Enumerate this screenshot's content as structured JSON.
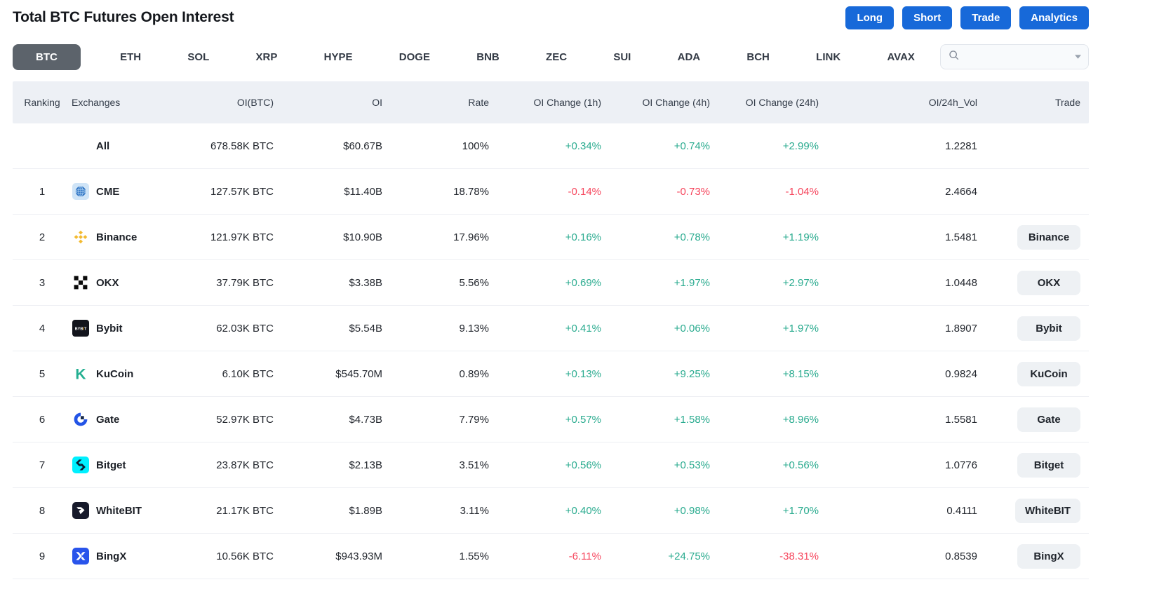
{
  "page": {
    "title": "Total BTC Futures Open Interest",
    "actions": [
      {
        "label": "Long"
      },
      {
        "label": "Short"
      },
      {
        "label": "Trade"
      },
      {
        "label": "Analytics"
      }
    ]
  },
  "tabs": {
    "items": [
      "BTC",
      "ETH",
      "SOL",
      "XRP",
      "HYPE",
      "DOGE",
      "BNB",
      "ZEC",
      "SUI",
      "ADA",
      "BCH",
      "LINK",
      "AVAX"
    ],
    "selected": "BTC"
  },
  "search": {
    "value": "",
    "placeholder": "",
    "icons": [
      "search-icon",
      "chevron-down-icon"
    ]
  },
  "table": {
    "columns": [
      "Ranking",
      "Exchanges",
      "OI(BTC)",
      "OI",
      "Rate",
      "OI Change (1h)",
      "OI Change (4h)",
      "OI Change (24h)",
      "OI/24h_Vol",
      "Trade"
    ],
    "rows": [
      {
        "rank": "",
        "name": "All",
        "logo": "",
        "oi_btc": "678.58K BTC",
        "oi": "$60.67B",
        "rate": "100%",
        "chg_1h": "+0.34%",
        "chg_4h": "+0.74%",
        "chg_24h": "+2.99%",
        "oi_24h_vol": "1.2281",
        "trade": ""
      },
      {
        "rank": "1",
        "name": "CME",
        "logo": "cme-logo",
        "oi_btc": "127.57K BTC",
        "oi": "$11.40B",
        "rate": "18.78%",
        "chg_1h": "-0.14%",
        "chg_4h": "-0.73%",
        "chg_24h": "-1.04%",
        "oi_24h_vol": "2.4664",
        "trade": ""
      },
      {
        "rank": "2",
        "name": "Binance",
        "logo": "binance-logo",
        "oi_btc": "121.97K BTC",
        "oi": "$10.90B",
        "rate": "17.96%",
        "chg_1h": "+0.16%",
        "chg_4h": "+0.78%",
        "chg_24h": "+1.19%",
        "oi_24h_vol": "1.5481",
        "trade": "Binance"
      },
      {
        "rank": "3",
        "name": "OKX",
        "logo": "okx-logo",
        "oi_btc": "37.79K BTC",
        "oi": "$3.38B",
        "rate": "5.56%",
        "chg_1h": "+0.69%",
        "chg_4h": "+1.97%",
        "chg_24h": "+2.97%",
        "oi_24h_vol": "1.0448",
        "trade": "OKX"
      },
      {
        "rank": "4",
        "name": "Bybit",
        "logo": "bybit-logo",
        "oi_btc": "62.03K BTC",
        "oi": "$5.54B",
        "rate": "9.13%",
        "chg_1h": "+0.41%",
        "chg_4h": "+0.06%",
        "chg_24h": "+1.97%",
        "oi_24h_vol": "1.8907",
        "trade": "Bybit"
      },
      {
        "rank": "5",
        "name": "KuCoin",
        "logo": "kucoin-logo",
        "oi_btc": "6.10K BTC",
        "oi": "$545.70M",
        "rate": "0.89%",
        "chg_1h": "+0.13%",
        "chg_4h": "+9.25%",
        "chg_24h": "+8.15%",
        "oi_24h_vol": "0.9824",
        "trade": "KuCoin"
      },
      {
        "rank": "6",
        "name": "Gate",
        "logo": "gate-logo",
        "oi_btc": "52.97K BTC",
        "oi": "$4.73B",
        "rate": "7.79%",
        "chg_1h": "+0.57%",
        "chg_4h": "+1.58%",
        "chg_24h": "+8.96%",
        "oi_24h_vol": "1.5581",
        "trade": "Gate"
      },
      {
        "rank": "7",
        "name": "Bitget",
        "logo": "bitget-logo",
        "oi_btc": "23.87K BTC",
        "oi": "$2.13B",
        "rate": "3.51%",
        "chg_1h": "+0.56%",
        "chg_4h": "+0.53%",
        "chg_24h": "+0.56%",
        "oi_24h_vol": "1.0776",
        "trade": "Bitget"
      },
      {
        "rank": "8",
        "name": "WhiteBIT",
        "logo": "whitebit-logo",
        "oi_btc": "21.17K BTC",
        "oi": "$1.89B",
        "rate": "3.11%",
        "chg_1h": "+0.40%",
        "chg_4h": "+0.98%",
        "chg_24h": "+1.70%",
        "oi_24h_vol": "0.4111",
        "trade": "WhiteBIT"
      },
      {
        "rank": "9",
        "name": "BingX",
        "logo": "bingx-logo",
        "oi_btc": "10.56K BTC",
        "oi": "$943.93M",
        "rate": "1.55%",
        "chg_1h": "-6.11%",
        "chg_4h": "+24.75%",
        "chg_24h": "-38.31%",
        "oi_24h_vol": "0.8539",
        "trade": "BingX"
      }
    ]
  },
  "colors": {
    "accent_blue": "#1769d9",
    "positive_green": "#2aab8f",
    "negative_red": "#f6465d",
    "selected_tab_grey": "#5c636b",
    "table_header_bg": "#edf0f5"
  }
}
